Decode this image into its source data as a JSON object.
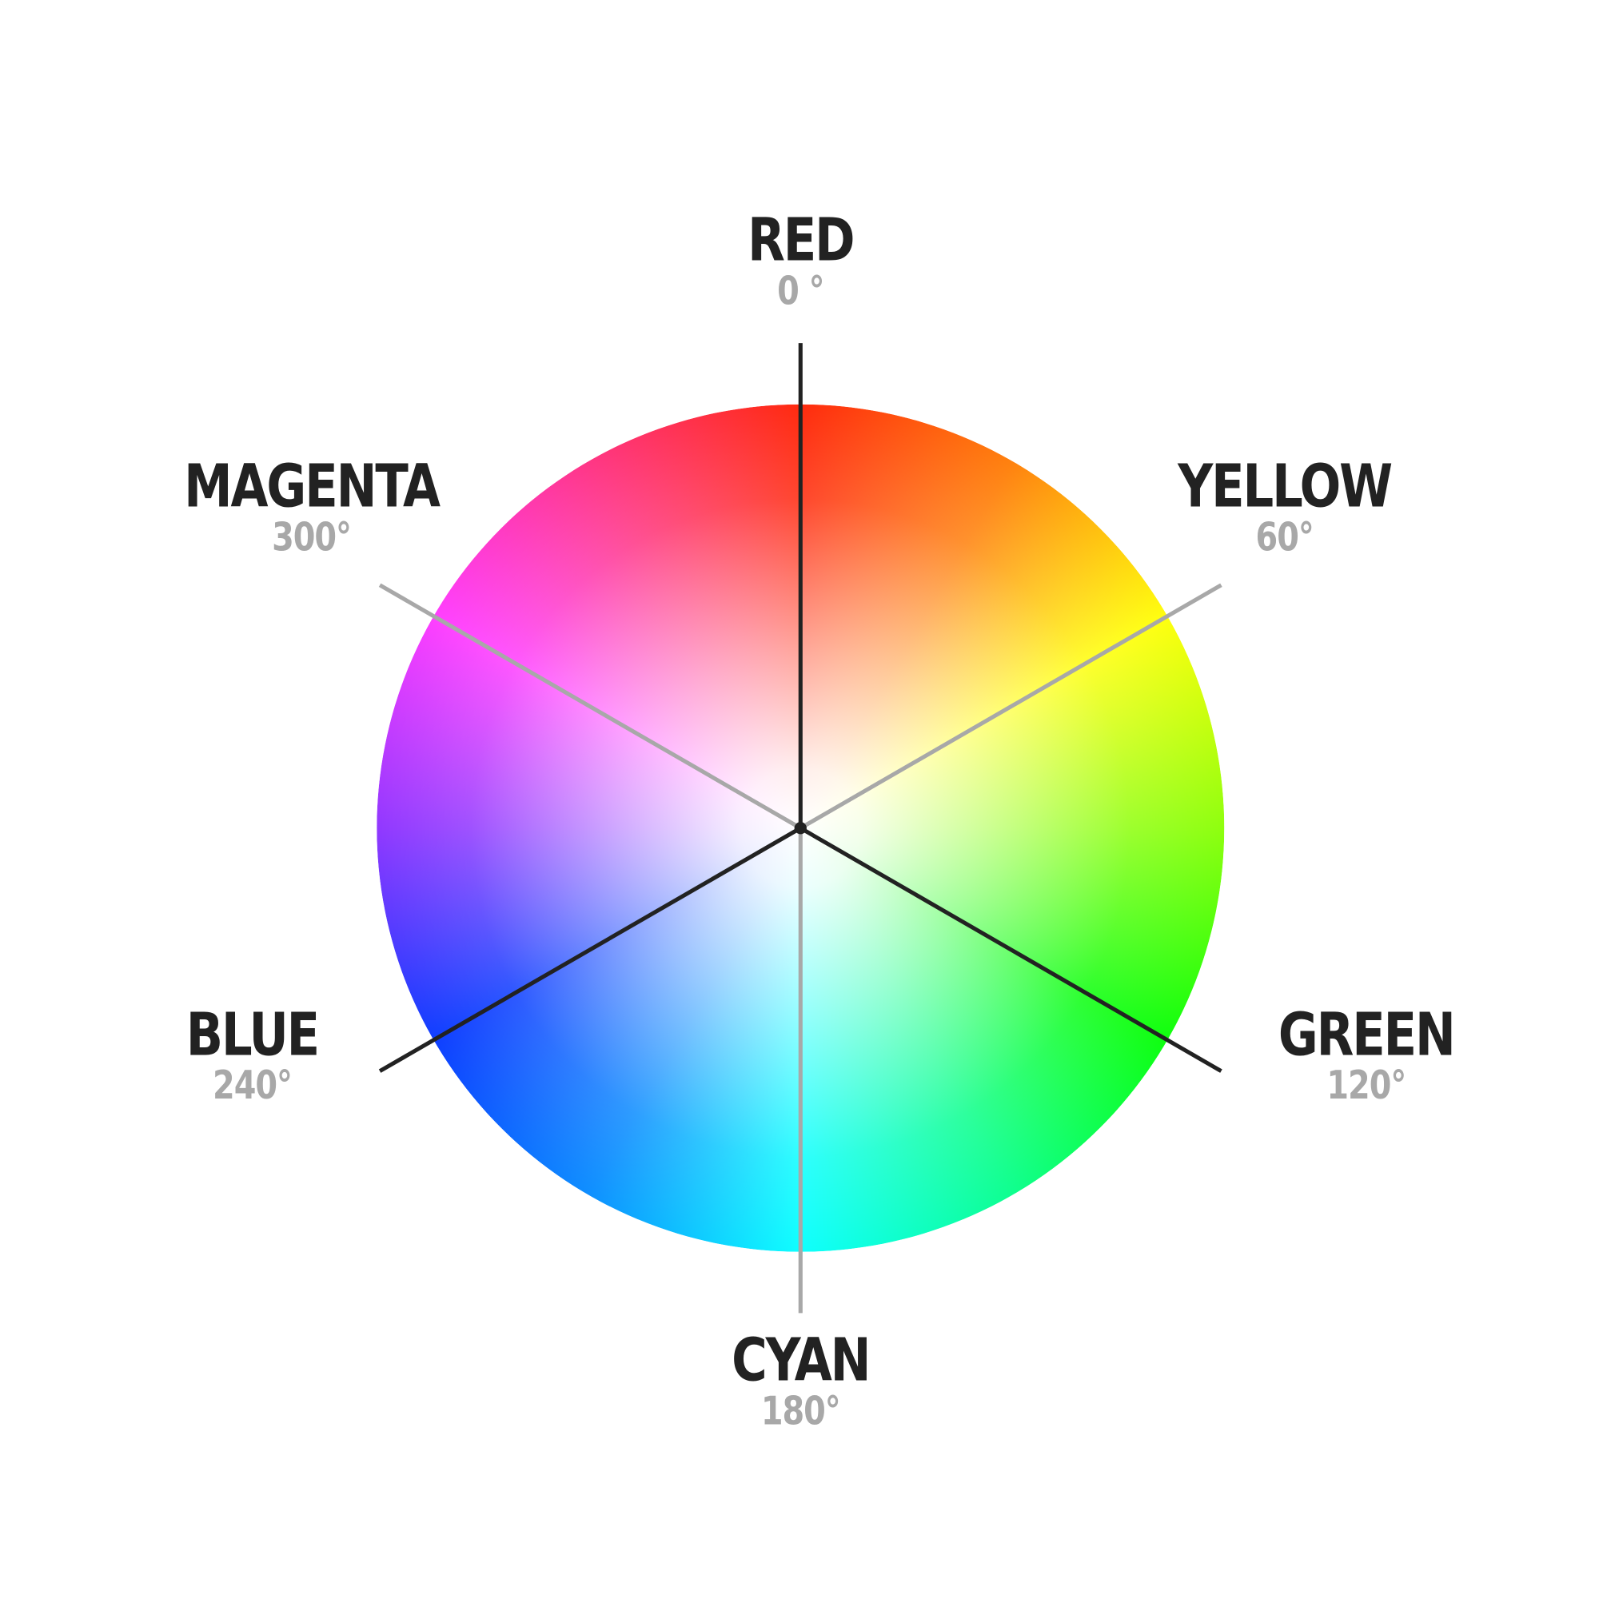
{
  "colors": {
    "text_dark": "#222222",
    "text_gray": "#a8a8a8",
    "axis_dark": "#222222",
    "axis_gray": "#a8a8a8"
  },
  "hues": [
    {
      "name": "RED",
      "angle_label": "0 °",
      "angle_deg": 0,
      "color": "#ff1e00"
    },
    {
      "name": "YELLOW",
      "angle_label": "60°",
      "angle_deg": 60,
      "color": "#ffff00"
    },
    {
      "name": "GREEN",
      "angle_label": "120°",
      "angle_deg": 120,
      "color": "#00ff00"
    },
    {
      "name": "CYAN",
      "angle_label": "180°",
      "angle_deg": 180,
      "color": "#00ffff"
    },
    {
      "name": "BLUE",
      "angle_label": "240°",
      "angle_deg": 240,
      "color": "#0033ff"
    },
    {
      "name": "MAGENTA",
      "angle_label": "300°",
      "angle_deg": 300,
      "color": "#ff33ff"
    }
  ]
}
